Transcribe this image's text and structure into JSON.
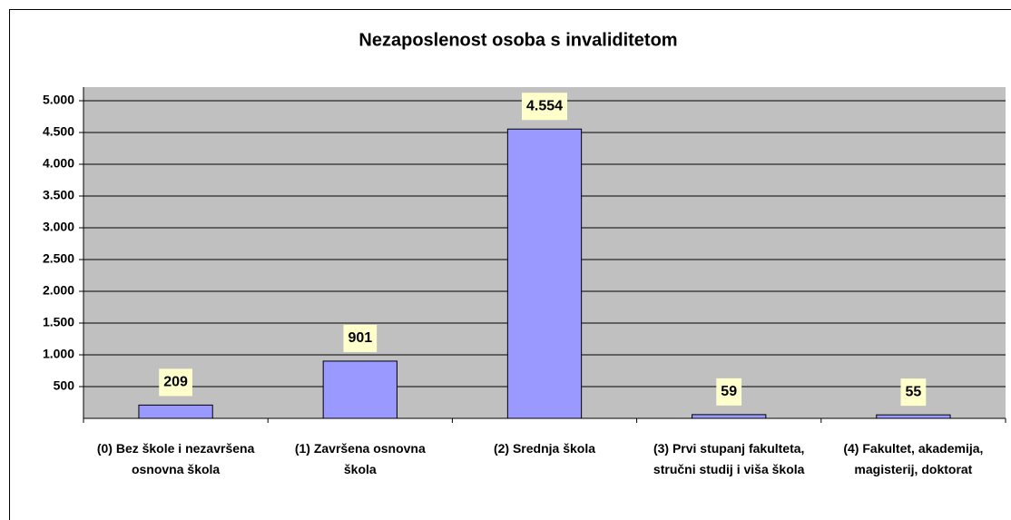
{
  "chart_data": {
    "type": "bar",
    "title": "Nezaposlenost osoba s invaliditetom",
    "categories": [
      "(0) Bez škole i nezavršena osnovna škola",
      "(1) Završena osnovna škola",
      "(2) Srednja škola",
      "(3) Prvi stupanj fakulteta, stručni studij i viša škola",
      "(4) Fakultet, akademija, magisterij, doktorat"
    ],
    "values": [
      209,
      901,
      4554,
      59,
      55
    ],
    "value_labels": [
      "209",
      "901",
      "4.554",
      "59",
      "55"
    ],
    "color": "#9999ff",
    "ylim": [
      0,
      5000
    ],
    "yticks": [
      500,
      {
        "value": 1000,
        "label": "1.000"
      },
      {
        "value": 1500,
        "label": "1.500"
      },
      {
        "value": 2000,
        "label": "2.000"
      },
      {
        "value": 2500,
        "label": "2.500"
      },
      {
        "value": 3000,
        "label": "3.000"
      },
      {
        "value": 3500,
        "label": "3.500"
      },
      {
        "value": 4000,
        "label": "4.000"
      },
      {
        "value": 4500,
        "label": "4.500"
      },
      {
        "value": 5000,
        "label": "5.000"
      }
    ],
    "grid": true
  }
}
